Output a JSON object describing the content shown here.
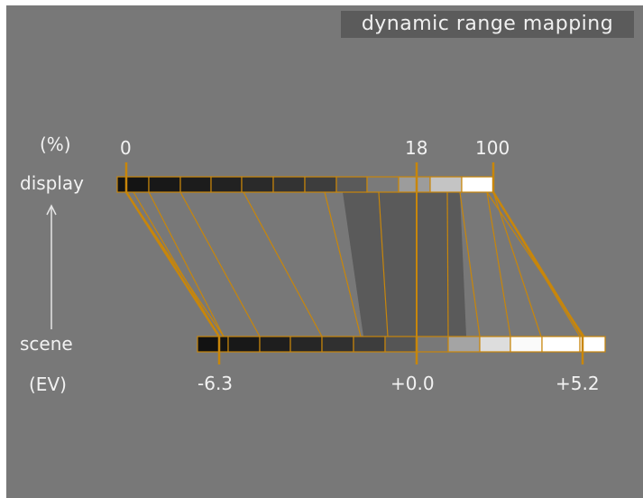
{
  "title": "dynamic range mapping",
  "labels": {
    "display_unit": "(%)",
    "display": "display",
    "scene": "scene",
    "scene_unit": "(EV)"
  },
  "display_ticks": [
    "0",
    "18",
    "100"
  ],
  "scene_ticks": [
    "-6.3",
    "+0.0",
    "+5.2"
  ],
  "display_bar_colors": [
    "#141414",
    "#141414",
    "#181818",
    "#1c1c1c",
    "#222222",
    "#2a2a2a",
    "#333333",
    "#3d3d3d",
    "#5a5a5a",
    "#7a7a7a",
    "#9c9c9c",
    "#c4c4c4",
    "#ffffff"
  ],
  "scene_bar_colors": [
    "#121212",
    "#141414",
    "#181818",
    "#1e1e1e",
    "#262626",
    "#303030",
    "#3d3d3d",
    "#555555",
    "#787878",
    "#a4a4a4",
    "#dddddd",
    "#fafafa",
    "#ffffff",
    "#ffffff"
  ],
  "colors": {
    "accent": "#c8860a",
    "background": "#787878",
    "title_box": "#5b5b5b",
    "middle_grey_band": "#5a5a5a"
  }
}
